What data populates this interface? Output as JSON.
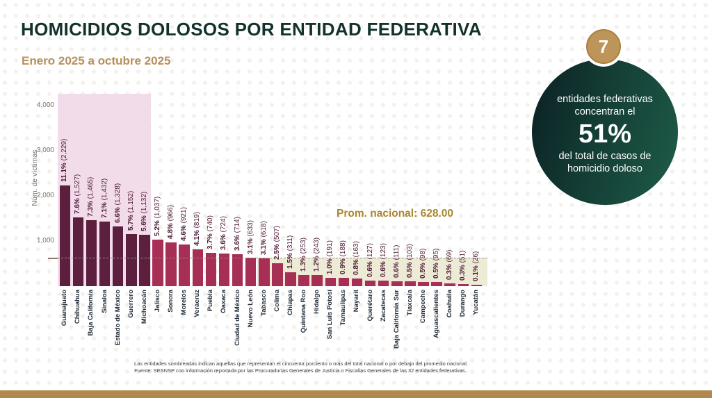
{
  "page": {
    "title": "HOMICIDIOS DOLOSOS POR ENTIDAD FEDERATIVA",
    "subtitle": "Enero 2025 a octubre 2025"
  },
  "badge": {
    "count": "7",
    "line1": "entidades federativas",
    "line2": "concentran el",
    "highlight": "51%",
    "line3": "del total de casos de",
    "line4": "homicidio doloso"
  },
  "chart_data": {
    "type": "bar",
    "title": "Homicidios dolosos por entidad federativa, enero 2025 a octubre 2025",
    "xlabel": "",
    "ylabel": "Núm. de víctimas",
    "ylim": [
      0,
      4260
    ],
    "grid": false,
    "yticks": [
      {
        "value": 1000,
        "label": "1,000"
      },
      {
        "value": 2000,
        "label": "2,000"
      },
      {
        "value": 3000,
        "label": "3,000"
      },
      {
        "value": 4000,
        "label": "4,000"
      }
    ],
    "average": {
      "value": 628,
      "label": "Prom. nacional: 628.00"
    },
    "highlight_top_count": 7,
    "below_average_start_index": 15,
    "categories": [
      "Guanajuato",
      "Chihuahua",
      "Baja California",
      "Sinaloa",
      "Estado de México",
      "Guerrero",
      "Michoacán",
      "Jalisco",
      "Sonora",
      "Morelos",
      "Veracruz",
      "Puebla",
      "Oaxaca",
      "Ciudad de México",
      "Nuevo León",
      "Tabasco",
      "Colima",
      "Chiapas",
      "Quintana Roo",
      "Hidalgo",
      "San Luis Potosí",
      "Tamaulipas",
      "Nayarit",
      "Querétaro",
      "Zacatecas",
      "Baja California Sur",
      "Tlaxcala",
      "Campeche",
      "Aguascalientes",
      "Coahuila",
      "Durango",
      "Yucatán"
    ],
    "values": [
      2229,
      1527,
      1465,
      1432,
      1328,
      1152,
      1132,
      1037,
      966,
      921,
      819,
      740,
      724,
      714,
      633,
      618,
      507,
      311,
      253,
      243,
      191,
      188,
      163,
      127,
      123,
      111,
      103,
      98,
      95,
      69,
      51,
      26
    ],
    "percent_labels": [
      "11.1%",
      "7.6%",
      "7.3%",
      "7.1%",
      "6.6%",
      "5.7%",
      "5.6%",
      "5.2%",
      "4.8%",
      "4.6%",
      "4.1%",
      "3.7%",
      "3.6%",
      "3.6%",
      "3.1%",
      "3.1%",
      "2.5%",
      "1.5%",
      "1.3%",
      "1.2%",
      "1.0%",
      "0.9%",
      "0.8%",
      "0.6%",
      "0.6%",
      "0.6%",
      "0.5%",
      "0.5%",
      "0.5%",
      "0.3%",
      "0.3%",
      "0.1%"
    ],
    "count_labels": [
      "2,229",
      "1,527",
      "1,465",
      "1,432",
      "1,328",
      "1,152",
      "1,132",
      "1,037",
      "966",
      "921",
      "819",
      "740",
      "724",
      "714",
      "633",
      "618",
      "507",
      "311",
      "253",
      "243",
      "191",
      "188",
      "163",
      "127",
      "123",
      "111",
      "103",
      "98",
      "95",
      "69",
      "51",
      "26"
    ]
  },
  "colors": {
    "bar_highlight": "#5c1f3e",
    "bar_normal": "#a72e55",
    "region_highlight": "#f3dce9",
    "region_below_average": "#edead6",
    "title": "#12322c",
    "accent_gold": "#b5905a",
    "average_label": "#aa872f",
    "badge_circle_dark": "#0b2023",
    "badge_circle_green": "#1e5c48",
    "bottom_bar": "#b1894f"
  },
  "footer": {
    "note": "Las entidades sombreadas indican aquellas que representan el cincuenta porciento o más del total nacional o por debajo del promedio nacional.",
    "source": "Fuente: SESNSP con información reportada por las Procuradurías Generales de Justicia o Fiscalías Generales de las 32 entidades federativas.."
  }
}
